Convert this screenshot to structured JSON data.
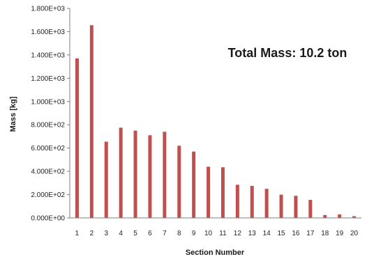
{
  "chart_data": {
    "type": "bar",
    "title": "",
    "xlabel": "Section Number",
    "ylabel": "Mass [kg]",
    "annotation": "Total Mass: 10.2 ton",
    "categories": [
      "1",
      "2",
      "3",
      "4",
      "5",
      "6",
      "7",
      "8",
      "9",
      "10",
      "11",
      "12",
      "13",
      "14",
      "15",
      "16",
      "17",
      "18",
      "19",
      "20"
    ],
    "values": [
      1370,
      1655,
      655,
      775,
      750,
      710,
      740,
      620,
      570,
      440,
      435,
      285,
      275,
      250,
      200,
      190,
      155,
      25,
      30,
      15
    ],
    "ylim": [
      0,
      1800
    ],
    "yticks": [
      0,
      200,
      400,
      600,
      800,
      1000,
      1200,
      1400,
      1600,
      1800
    ],
    "ytick_labels": [
      "0.000E+00",
      "2.000E+02",
      "4.000E+02",
      "6.000E+02",
      "8.000E+02",
      "1.000E+03",
      "1.200E+03",
      "1.400E+03",
      "1.600E+03",
      "1.800E+03"
    ],
    "grid": false,
    "legend": "none",
    "bar_color": "#c0504d",
    "axis_color": "#7f7f7f"
  }
}
